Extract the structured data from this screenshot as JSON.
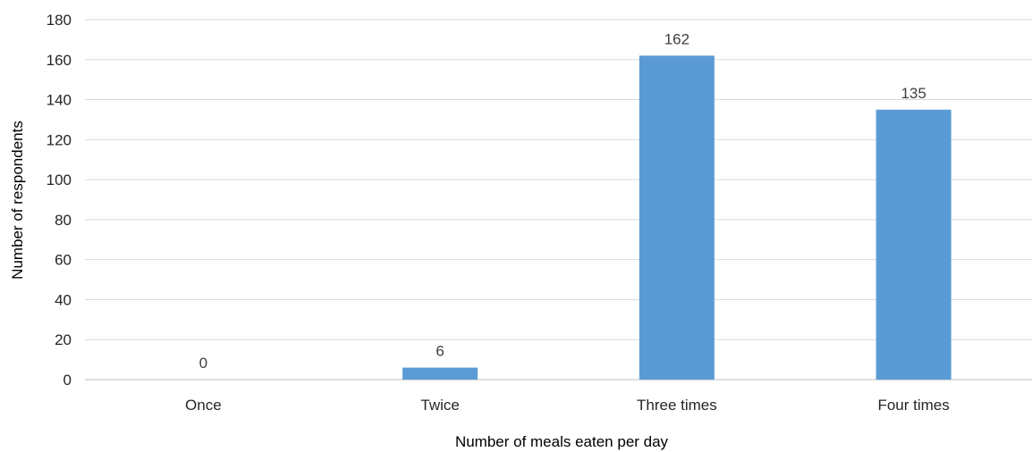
{
  "chart_data": {
    "type": "bar",
    "title": "",
    "xlabel": "Number of meals eaten per day",
    "ylabel": "Number of respondents",
    "categories": [
      "Once",
      "Twice",
      "Three times",
      "Four times"
    ],
    "values": [
      0,
      6,
      162,
      135
    ],
    "data_labels": [
      "0",
      "6",
      "162",
      "135"
    ],
    "ylim": [
      0,
      180
    ],
    "yticks": [
      0,
      20,
      40,
      60,
      80,
      100,
      120,
      140,
      160,
      180
    ],
    "ytick_labels": [
      "0",
      "20",
      "40",
      "60",
      "80",
      "100",
      "120",
      "140",
      "160",
      "180"
    ],
    "grid": true,
    "legend": "none",
    "bar_color": "#5b9bd5"
  }
}
